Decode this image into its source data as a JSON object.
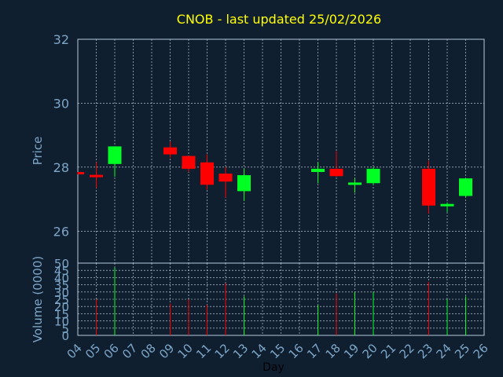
{
  "colors": {
    "background": "#0f1f30",
    "frame": "#b4c8dc",
    "grid": "#d8e2ec",
    "title": "#ffff00",
    "axis_text": "#7da6c8",
    "up": "#00ff22",
    "down": "#ff0000"
  },
  "chart_data": [
    {
      "type": "candlestick",
      "title": "CNOB - last updated 25/02/2026",
      "xlabel": "",
      "ylabel": "Price",
      "ylim": [
        25,
        32
      ],
      "yticks": [
        "26",
        "28",
        "30",
        "32"
      ],
      "grid": true,
      "x": [
        "04",
        "05",
        "06",
        "09",
        "10",
        "11",
        "12",
        "13",
        "17",
        "18",
        "19",
        "20",
        "23",
        "24",
        "25"
      ],
      "open": [
        27.85,
        27.76,
        28.1,
        28.62,
        28.35,
        28.15,
        27.8,
        27.25,
        27.85,
        27.95,
        27.45,
        27.5,
        27.95,
        26.78,
        27.1
      ],
      "close": [
        27.8,
        27.72,
        28.65,
        28.4,
        27.95,
        27.45,
        27.55,
        27.75,
        27.95,
        27.72,
        27.52,
        27.95,
        26.8,
        26.85,
        27.65
      ],
      "high": [
        27.85,
        28.15,
        28.65,
        28.8,
        28.35,
        28.4,
        28.0,
        27.95,
        28.15,
        28.5,
        27.65,
        28.0,
        28.2,
        26.9,
        27.65
      ],
      "low": [
        27.78,
        27.35,
        27.7,
        28.3,
        27.85,
        27.3,
        27.05,
        26.95,
        27.5,
        27.7,
        27.2,
        27.45,
        26.55,
        26.6,
        27.05
      ]
    },
    {
      "type": "bar",
      "xlabel": "Day",
      "ylabel": "Volume (0000)",
      "ylim": [
        0,
        50
      ],
      "yticks": [
        "0",
        "5",
        "10",
        "15",
        "20",
        "25",
        "30",
        "35",
        "40",
        "45",
        "50"
      ],
      "grid": true,
      "categories": [
        "04",
        "05",
        "06",
        "07",
        "08",
        "09",
        "10",
        "11",
        "12",
        "13",
        "14",
        "15",
        "16",
        "17",
        "18",
        "19",
        "20",
        "21",
        "22",
        "23",
        "24",
        "25",
        "26"
      ],
      "values": [
        0,
        25,
        47,
        0,
        0,
        22,
        25,
        21,
        36,
        27,
        0,
        0,
        0,
        21,
        29,
        30,
        30,
        0,
        0,
        37,
        25,
        27,
        0
      ]
    }
  ]
}
